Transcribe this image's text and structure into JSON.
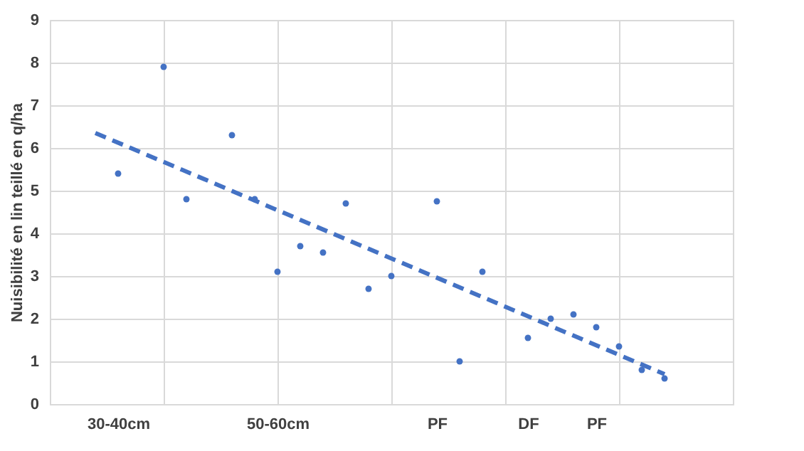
{
  "chart_data": {
    "type": "scatter",
    "ylabel": "Nuisibilité en lin teillé en q/ha",
    "categories": [
      null,
      null,
      null,
      "30-40cm",
      null,
      null,
      null,
      null,
      null,
      null,
      "50-60cm",
      null,
      null,
      null,
      null,
      null,
      null,
      "PF",
      null,
      null,
      null,
      "DF",
      null,
      null,
      "PF",
      null,
      null,
      null,
      null,
      null,
      null
    ],
    "ylim": [
      0,
      9
    ],
    "yticks": [
      0,
      1,
      2,
      3,
      4,
      5,
      6,
      7,
      8,
      9
    ],
    "grid": true,
    "marker": "circle",
    "series": [
      {
        "color": "#4472c4",
        "values": [
          null,
          null,
          null,
          5.4,
          null,
          7.9,
          4.8,
          null,
          6.3,
          4.8,
          3.1,
          3.7,
          3.55,
          4.7,
          2.7,
          3.0,
          null,
          4.75,
          1.0,
          3.1,
          null,
          1.55,
          2.0,
          2.1,
          1.8,
          1.35,
          0.8,
          0.6,
          null,
          null,
          null
        ]
      },
      {
        "type": "line",
        "marker": "none",
        "line_style": "dashed",
        "color": "#4472c4",
        "values": [
          null,
          null,
          6.35,
          null,
          null,
          null,
          null,
          null,
          null,
          null,
          null,
          null,
          null,
          null,
          null,
          null,
          null,
          null,
          null,
          null,
          null,
          null,
          null,
          null,
          null,
          null,
          null,
          0.7,
          null,
          null,
          null
        ]
      }
    ]
  }
}
